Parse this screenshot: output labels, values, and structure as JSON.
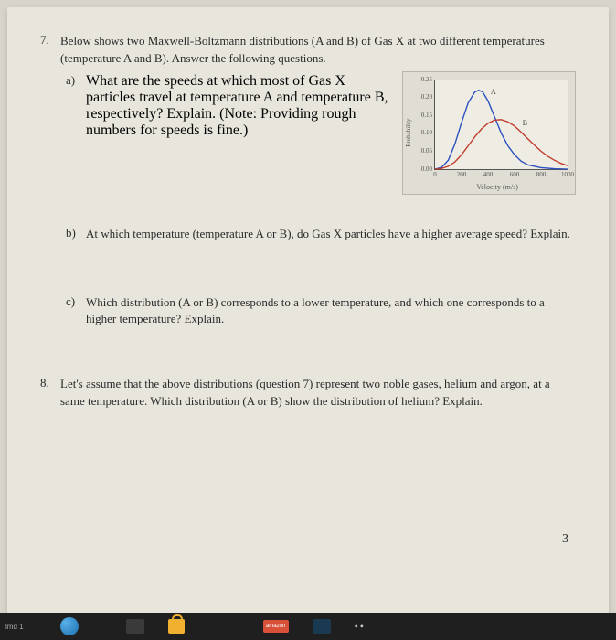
{
  "q7": {
    "num": "7.",
    "intro": "Below shows two Maxwell-Boltzmann distributions (A and B) of Gas X at two different temperatures (temperature A and B). Answer the following questions.",
    "a": {
      "letter": "a)",
      "text": "What are the speeds at which most of Gas X particles travel at temperature A and temperature B, respectively? Explain. (Note: Providing rough numbers for speeds is fine.)"
    },
    "b": {
      "letter": "b)",
      "text": "At which temperature (temperature A or B), do Gas X particles have a higher average speed? Explain."
    },
    "c": {
      "letter": "c)",
      "text": "Which distribution (A or B) corresponds to a lower temperature, and which one corresponds to a higher temperature? Explain."
    }
  },
  "q8": {
    "num": "8.",
    "text": "Let's assume that the above distributions (question 7) represent two noble gases, helium and argon, at a same temperature. Which distribution (A or B) show the distribution of helium? Explain."
  },
  "chart": {
    "type": "line",
    "xlim": [
      0,
      1000
    ],
    "ylim": [
      0,
      0.25
    ],
    "xticks": [
      0,
      200,
      400,
      600,
      800,
      1000
    ],
    "yticks": [
      0.0,
      0.05,
      0.1,
      0.15,
      0.2,
      0.25
    ],
    "xlabel": "Velocity (m/s)",
    "ylabel": "Probability",
    "background_color": "#efece4",
    "axis_color": "#555555",
    "tick_fontsize": 7,
    "series": {
      "A": {
        "label": "A",
        "label_pos": {
          "x": 420,
          "y": 0.225
        },
        "color": "#2a4fc0",
        "stroke_width": 1.4,
        "points": [
          [
            0,
            0
          ],
          [
            50,
            0.005
          ],
          [
            100,
            0.025
          ],
          [
            150,
            0.07
          ],
          [
            200,
            0.13
          ],
          [
            250,
            0.185
          ],
          [
            300,
            0.215
          ],
          [
            330,
            0.22
          ],
          [
            360,
            0.215
          ],
          [
            400,
            0.19
          ],
          [
            450,
            0.145
          ],
          [
            500,
            0.1
          ],
          [
            550,
            0.065
          ],
          [
            600,
            0.04
          ],
          [
            650,
            0.022
          ],
          [
            700,
            0.012
          ],
          [
            800,
            0.004
          ],
          [
            900,
            0.001
          ],
          [
            1000,
            0
          ]
        ]
      },
      "B": {
        "label": "B",
        "label_pos": {
          "x": 660,
          "y": 0.14
        },
        "color": "#c03a2a",
        "stroke_width": 1.4,
        "points": [
          [
            0,
            0
          ],
          [
            50,
            0.002
          ],
          [
            100,
            0.008
          ],
          [
            150,
            0.02
          ],
          [
            200,
            0.04
          ],
          [
            250,
            0.065
          ],
          [
            300,
            0.09
          ],
          [
            350,
            0.112
          ],
          [
            400,
            0.128
          ],
          [
            450,
            0.137
          ],
          [
            500,
            0.138
          ],
          [
            550,
            0.132
          ],
          [
            600,
            0.12
          ],
          [
            650,
            0.103
          ],
          [
            700,
            0.085
          ],
          [
            750,
            0.067
          ],
          [
            800,
            0.05
          ],
          [
            850,
            0.036
          ],
          [
            900,
            0.025
          ],
          [
            950,
            0.016
          ],
          [
            1000,
            0.01
          ]
        ]
      }
    }
  },
  "page_number": "3",
  "taskbar": {
    "label_left": "lmd 1",
    "chip": "amazon"
  }
}
